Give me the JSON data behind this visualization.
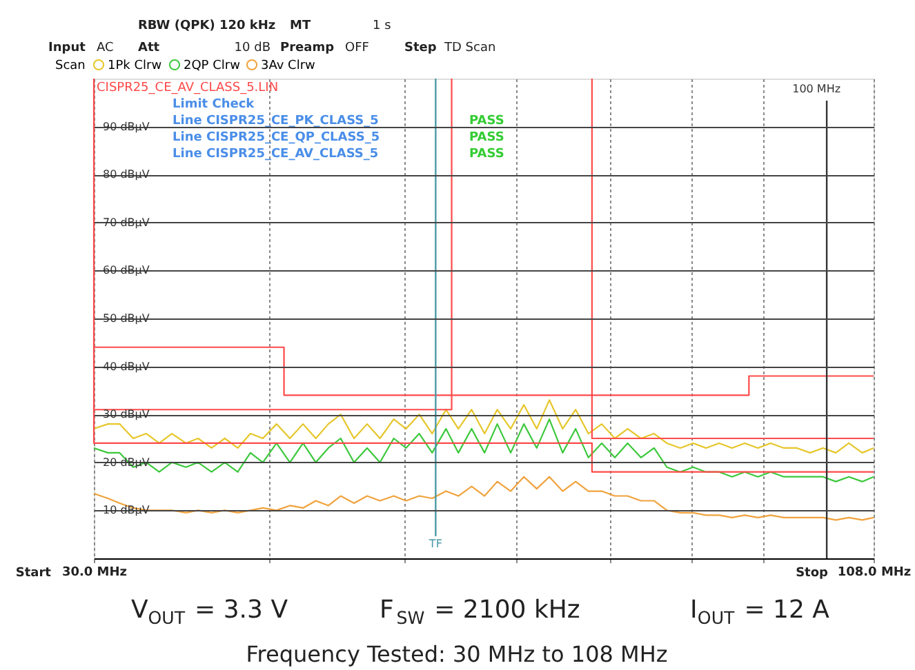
{
  "chart_data": {
    "type": "line",
    "x": [
      30,
      30.7,
      31.3,
      32,
      32.7,
      33.4,
      34.1,
      34.9,
      35.6,
      36.4,
      37.2,
      38,
      38.8,
      39.6,
      40.5,
      41.4,
      42.3,
      43.2,
      44.1,
      45,
      46,
      47,
      48,
      49.1,
      50.1,
      51.2,
      52.3,
      53.5,
      54.6,
      55.8,
      57,
      58.2,
      59.5,
      60.8,
      62.1,
      63.4,
      64.8,
      66.2,
      67.6,
      69.1,
      70.6,
      72.1,
      73.7,
      75.3,
      76.9,
      78.6,
      80.3,
      82,
      83.8,
      85.6,
      87.4,
      89.3,
      91.2,
      93.2,
      95.2,
      97.3,
      99.4,
      101.5,
      103.7,
      106,
      108
    ],
    "series": [
      {
        "name": "1Pk Clrw",
        "color": "#e6c62a",
        "values": [
          27,
          28,
          28,
          25,
          26,
          24,
          26,
          24,
          25,
          23,
          25,
          23,
          26,
          25,
          28,
          25,
          28,
          25,
          28,
          30,
          25,
          28,
          25,
          29,
          27,
          30,
          26,
          31,
          27,
          31,
          26,
          31,
          27,
          32,
          27,
          33,
          27,
          31,
          26,
          28,
          25,
          27,
          25,
          26,
          24,
          23,
          24,
          23,
          24,
          23,
          24,
          23,
          24,
          23,
          23,
          22,
          23,
          22,
          24,
          22,
          23
        ]
      },
      {
        "name": "2QP Clrw",
        "color": "#3cc83c",
        "values": [
          23,
          22,
          22,
          19,
          20,
          18,
          20,
          19,
          20,
          18,
          20,
          18,
          22,
          20,
          24,
          20,
          24,
          20,
          23,
          25,
          20,
          23,
          20,
          25,
          23,
          26,
          22,
          27,
          22,
          27,
          22,
          28,
          22,
          28,
          23,
          29,
          22,
          27,
          21,
          24,
          21,
          24,
          21,
          23,
          19,
          18,
          19,
          18,
          18,
          17,
          18,
          17,
          18,
          17,
          17,
          17,
          17,
          16,
          17,
          16,
          17
        ]
      },
      {
        "name": "3Av Clrw",
        "color": "#f0a23c",
        "values": [
          13.5,
          12.5,
          11.5,
          10.5,
          10,
          10,
          10,
          9.5,
          10,
          9.5,
          10,
          9.5,
          10,
          10.5,
          10,
          11,
          10.5,
          12,
          11,
          13,
          11.5,
          13,
          12,
          13,
          12,
          13,
          12.5,
          14,
          13,
          15,
          13,
          16,
          14,
          17,
          14.5,
          17,
          14,
          16,
          14,
          14,
          13,
          13,
          12,
          12,
          10,
          9.5,
          9.5,
          9,
          9,
          8.5,
          9,
          8.5,
          9,
          8.5,
          8.5,
          8.5,
          8.5,
          8,
          8.5,
          8,
          8.5
        ]
      },
      {
        "type": "line",
        "color": "#ff4a4a",
        "x": [
          30,
          41,
          41,
          88,
          88,
          108
        ],
        "values": [
          44,
          44,
          34,
          34,
          38,
          38
        ]
      },
      {
        "type": "line",
        "color": "#ff4a4a",
        "x": [
          30,
          54,
          54,
          61,
          68,
          68,
          108
        ],
        "values": [
          31,
          31,
          100,
          null,
          100,
          25,
          25
        ]
      },
      {
        "type": "line",
        "color": "#ff4a4a",
        "x": [
          30,
          30,
          68,
          68,
          108
        ],
        "values": [
          100,
          24,
          24,
          18,
          18
        ]
      }
    ],
    "log": "x",
    "xlim": [
      30,
      108
    ],
    "xticks": [
      {
        "value": 30,
        "label": "30.0 MHz"
      },
      {
        "value": 40,
        "label": null
      },
      {
        "value": 50,
        "label": null
      },
      {
        "value": 60,
        "label": null
      },
      {
        "value": 70,
        "label": null
      },
      {
        "value": 80,
        "label": null
      },
      {
        "value": 90,
        "label": null
      },
      {
        "value": 108,
        "label": "108.0 MHz"
      }
    ],
    "ylim": [
      0,
      100
    ],
    "yticks": [
      {
        "value": 10,
        "label": "10 dBµV"
      },
      {
        "value": 20,
        "label": "20 dBµV"
      },
      {
        "value": 30,
        "label": "30 dBµV"
      },
      {
        "value": 40,
        "label": "40 dBµV"
      },
      {
        "value": 50,
        "label": "50 dBµV"
      },
      {
        "value": 60,
        "label": "60 dBµV"
      },
      {
        "value": 70,
        "label": "70 dBµV"
      },
      {
        "value": 80,
        "label": "80 dBµV"
      },
      {
        "value": 90,
        "label": "90 dBµV"
      }
    ],
    "grid": true,
    "legend": "top left",
    "legend_title": "Scan",
    "ref_lines": [
      {
        "axis": "x",
        "value": 52.6,
        "label": "TF",
        "color": "#4b9aa5"
      },
      {
        "axis": "x",
        "value": 100,
        "label": "100 MHz",
        "color": "#333333"
      }
    ],
    "annotations": [
      "RBW (QPK) 120 kHz",
      "MT",
      "1 s",
      "Input",
      "AC",
      "Att",
      "10 dB",
      "Preamp",
      "OFF",
      "Step",
      "TD Scan",
      "CISPR25_CE_AV_CLASS_5.LIN",
      "Limit Check",
      "Line CISPR25_CE_PK_CLASS_5",
      "PASS",
      "Line CISPR25_CE_QP_CLASS_5",
      "PASS",
      "Line CISPR25_CE_AV_CLASS_5",
      "PASS",
      "Start",
      "Stop",
      "V$_{OUT}$ = 3.3 V",
      "F$_{SW}$ = 2100 kHz",
      "I$_{OUT}$ = 12 A",
      "Frequency Tested: 30 MHz to 108 MHz"
    ]
  }
}
